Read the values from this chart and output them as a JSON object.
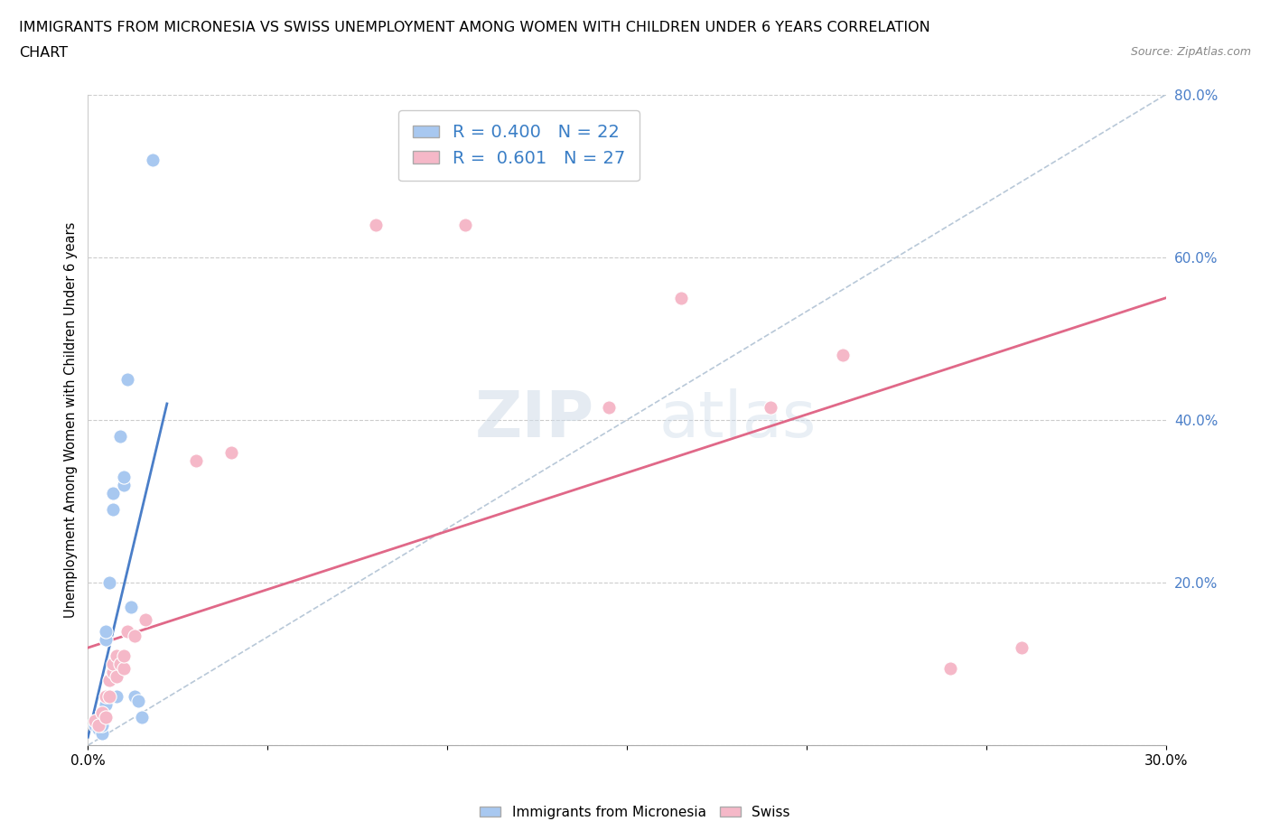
{
  "title_line1": "IMMIGRANTS FROM MICRONESIA VS SWISS UNEMPLOYMENT AMONG WOMEN WITH CHILDREN UNDER 6 YEARS CORRELATION",
  "title_line2": "CHART",
  "source": "Source: ZipAtlas.com",
  "ylabel": "Unemployment Among Women with Children Under 6 years",
  "xlim": [
    0.0,
    0.3
  ],
  "ylim": [
    0.0,
    0.8
  ],
  "xticks": [
    0.0,
    0.05,
    0.1,
    0.15,
    0.2,
    0.25,
    0.3
  ],
  "yticks": [
    0.0,
    0.2,
    0.4,
    0.6,
    0.8
  ],
  "blue_R": 0.4,
  "blue_N": 22,
  "pink_R": 0.601,
  "pink_N": 27,
  "blue_color": "#a8c8f0",
  "pink_color": "#f5b8c8",
  "blue_line_color": "#4a7ec8",
  "pink_line_color": "#e06888",
  "diagonal_color": "#b8c8d8",
  "watermark_zip": "ZIP",
  "watermark_atlas": "atlas",
  "blue_dots_x": [
    0.002,
    0.003,
    0.003,
    0.004,
    0.004,
    0.004,
    0.005,
    0.005,
    0.005,
    0.006,
    0.007,
    0.007,
    0.008,
    0.009,
    0.01,
    0.01,
    0.011,
    0.012,
    0.013,
    0.014,
    0.015,
    0.018
  ],
  "blue_dots_y": [
    0.025,
    0.02,
    0.03,
    0.015,
    0.025,
    0.04,
    0.13,
    0.14,
    0.05,
    0.2,
    0.29,
    0.31,
    0.06,
    0.38,
    0.32,
    0.33,
    0.45,
    0.17,
    0.06,
    0.055,
    0.035,
    0.72
  ],
  "pink_dots_x": [
    0.002,
    0.003,
    0.004,
    0.005,
    0.005,
    0.006,
    0.006,
    0.007,
    0.007,
    0.008,
    0.008,
    0.009,
    0.01,
    0.01,
    0.011,
    0.013,
    0.016,
    0.03,
    0.04,
    0.08,
    0.105,
    0.145,
    0.165,
    0.19,
    0.21,
    0.24,
    0.26
  ],
  "pink_dots_y": [
    0.03,
    0.025,
    0.04,
    0.035,
    0.06,
    0.06,
    0.08,
    0.09,
    0.1,
    0.085,
    0.11,
    0.1,
    0.095,
    0.11,
    0.14,
    0.135,
    0.155,
    0.35,
    0.36,
    0.64,
    0.64,
    0.415,
    0.55,
    0.415,
    0.48,
    0.095,
    0.12
  ],
  "blue_line_x0": 0.0,
  "blue_line_y0": 0.01,
  "blue_line_x1": 0.022,
  "blue_line_y1": 0.42,
  "pink_line_x0": 0.0,
  "pink_line_y0": 0.12,
  "pink_line_x1": 0.3,
  "pink_line_y1": 0.55,
  "diag_line_x0": 0.0,
  "diag_line_y0": 0.0,
  "diag_line_x1": 0.3,
  "diag_line_y1": 0.8
}
